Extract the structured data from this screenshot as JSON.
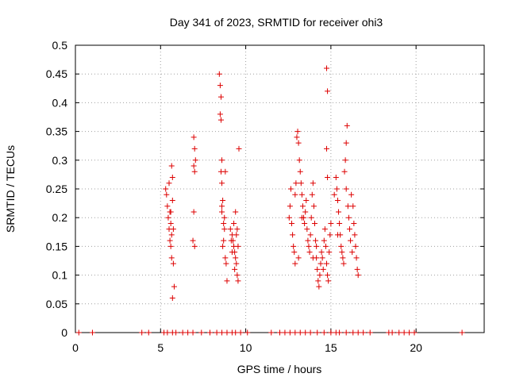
{
  "chart_data": {
    "type": "scatter",
    "title": "Day 341 of 2023, SRMTID for receiver ohi3",
    "xlabel": "GPS time / hours",
    "ylabel": "SRMTID / TECUs",
    "xlim": [
      0,
      24
    ],
    "ylim": [
      0,
      0.5
    ],
    "xticks": [
      0,
      5,
      10,
      15,
      20
    ],
    "xtick_labels": [
      "0",
      "5",
      "10",
      "15",
      "20"
    ],
    "yticks": [
      0,
      0.05,
      0.1,
      0.15,
      0.2,
      0.25,
      0.3,
      0.35,
      0.4,
      0.45,
      0.5
    ],
    "ytick_labels": [
      "0",
      "0.05",
      "0.1",
      "0.15",
      "0.2",
      "0.25",
      "0.3",
      "0.35",
      "0.4",
      "0.45",
      "0.5"
    ],
    "grid": true,
    "marker": "+",
    "color": "#dd0000",
    "series": [
      {
        "name": "SRMTID",
        "points": [
          [
            0.2,
            0
          ],
          [
            1.0,
            0
          ],
          [
            3.9,
            0
          ],
          [
            4.3,
            0
          ],
          [
            5.2,
            0
          ],
          [
            5.4,
            0
          ],
          [
            5.7,
            0
          ],
          [
            5.9,
            0
          ],
          [
            6.3,
            0
          ],
          [
            6.6,
            0
          ],
          [
            6.9,
            0
          ],
          [
            7.4,
            0
          ],
          [
            7.9,
            0
          ],
          [
            8.3,
            0
          ],
          [
            8.6,
            0
          ],
          [
            8.9,
            0
          ],
          [
            9.2,
            0
          ],
          [
            9.4,
            0
          ],
          [
            9.7,
            0
          ],
          [
            10.1,
            0
          ],
          [
            11.5,
            0
          ],
          [
            12.0,
            0
          ],
          [
            12.3,
            0
          ],
          [
            12.6,
            0
          ],
          [
            12.9,
            0
          ],
          [
            13.2,
            0
          ],
          [
            13.5,
            0
          ],
          [
            13.8,
            0
          ],
          [
            14.2,
            0
          ],
          [
            14.6,
            0
          ],
          [
            15.0,
            0
          ],
          [
            15.3,
            0
          ],
          [
            15.5,
            0
          ],
          [
            15.9,
            0
          ],
          [
            16.3,
            0
          ],
          [
            16.6,
            0
          ],
          [
            16.9,
            0
          ],
          [
            17.3,
            0
          ],
          [
            18.4,
            0
          ],
          [
            18.6,
            0
          ],
          [
            19.0,
            0
          ],
          [
            19.3,
            0
          ],
          [
            19.6,
            0
          ],
          [
            19.9,
            0
          ],
          [
            22.7,
            0
          ],
          [
            5.3,
            0.25
          ],
          [
            5.35,
            0.24
          ],
          [
            5.4,
            0.22
          ],
          [
            5.45,
            0.2
          ],
          [
            5.5,
            0.26
          ],
          [
            5.55,
            0.21
          ],
          [
            5.6,
            0.19
          ],
          [
            5.6,
            0.15
          ],
          [
            5.65,
            0.13
          ],
          [
            5.65,
            0.29
          ],
          [
            5.7,
            0.23
          ],
          [
            5.7,
            0.27
          ],
          [
            5.75,
            0.18
          ],
          [
            5.75,
            0.12
          ],
          [
            5.8,
            0.08
          ],
          [
            5.7,
            0.06
          ],
          [
            5.6,
            0.21
          ],
          [
            5.5,
            0.18
          ],
          [
            5.55,
            0.16
          ],
          [
            5.65,
            0.17
          ],
          [
            6.95,
            0.34
          ],
          [
            7.0,
            0.32
          ],
          [
            6.95,
            0.29
          ],
          [
            7.0,
            0.28
          ],
          [
            7.05,
            0.3
          ],
          [
            6.95,
            0.21
          ],
          [
            6.9,
            0.16
          ],
          [
            7.0,
            0.15
          ],
          [
            8.45,
            0.45
          ],
          [
            8.5,
            0.43
          ],
          [
            8.55,
            0.41
          ],
          [
            8.5,
            0.38
          ],
          [
            8.55,
            0.37
          ],
          [
            8.6,
            0.3
          ],
          [
            8.55,
            0.28
          ],
          [
            8.6,
            0.26
          ],
          [
            8.65,
            0.23
          ],
          [
            8.6,
            0.21
          ],
          [
            8.7,
            0.19
          ],
          [
            8.75,
            0.18
          ],
          [
            8.7,
            0.16
          ],
          [
            8.65,
            0.15
          ],
          [
            8.8,
            0.13
          ],
          [
            8.85,
            0.12
          ],
          [
            8.75,
            0.2
          ],
          [
            8.6,
            0.22
          ],
          [
            8.9,
            0.09
          ],
          [
            8.8,
            0.28
          ],
          [
            9.1,
            0.18
          ],
          [
            9.2,
            0.17
          ],
          [
            9.25,
            0.16
          ],
          [
            9.3,
            0.15
          ],
          [
            9.35,
            0.14
          ],
          [
            9.4,
            0.13
          ],
          [
            9.45,
            0.12
          ],
          [
            9.5,
            0.1
          ],
          [
            9.55,
            0.09
          ],
          [
            9.4,
            0.21
          ],
          [
            9.5,
            0.18
          ],
          [
            9.6,
            0.32
          ],
          [
            9.3,
            0.19
          ],
          [
            9.15,
            0.16
          ],
          [
            9.2,
            0.14
          ],
          [
            9.35,
            0.11
          ],
          [
            9.45,
            0.17
          ],
          [
            9.55,
            0.15
          ],
          [
            12.55,
            0.2
          ],
          [
            12.6,
            0.22
          ],
          [
            12.65,
            0.25
          ],
          [
            12.7,
            0.19
          ],
          [
            12.75,
            0.17
          ],
          [
            12.8,
            0.15
          ],
          [
            12.85,
            0.14
          ],
          [
            12.9,
            0.24
          ],
          [
            12.95,
            0.26
          ],
          [
            13.0,
            0.34
          ],
          [
            13.05,
            0.35
          ],
          [
            13.1,
            0.33
          ],
          [
            13.15,
            0.3
          ],
          [
            13.2,
            0.28
          ],
          [
            13.25,
            0.26
          ],
          [
            13.3,
            0.24
          ],
          [
            13.35,
            0.22
          ],
          [
            13.4,
            0.2
          ],
          [
            13.45,
            0.19
          ],
          [
            13.5,
            0.21
          ],
          [
            13.55,
            0.23
          ],
          [
            13.6,
            0.18
          ],
          [
            13.65,
            0.16
          ],
          [
            13.7,
            0.15
          ],
          [
            13.75,
            0.14
          ],
          [
            13.8,
            0.17
          ],
          [
            13.85,
            0.2
          ],
          [
            13.9,
            0.24
          ],
          [
            13.95,
            0.26
          ],
          [
            14.0,
            0.22
          ],
          [
            14.05,
            0.19
          ],
          [
            14.1,
            0.16
          ],
          [
            14.15,
            0.13
          ],
          [
            14.2,
            0.11
          ],
          [
            14.25,
            0.09
          ],
          [
            14.3,
            0.08
          ],
          [
            14.35,
            0.1
          ],
          [
            14.4,
            0.12
          ],
          [
            14.45,
            0.14
          ],
          [
            14.5,
            0.13
          ],
          [
            14.55,
            0.11
          ],
          [
            14.6,
            0.16
          ],
          [
            14.65,
            0.18
          ],
          [
            14.7,
            0.15
          ],
          [
            14.75,
            0.12
          ],
          [
            14.8,
            0.1
          ],
          [
            14.85,
            0.09
          ],
          [
            14.9,
            0.14
          ],
          [
            14.95,
            0.17
          ],
          [
            15.0,
            0.19
          ],
          [
            14.75,
            0.32
          ],
          [
            14.8,
            0.42
          ],
          [
            14.75,
            0.46
          ],
          [
            14.8,
            0.27
          ],
          [
            13.1,
            0.13
          ],
          [
            12.9,
            0.12
          ],
          [
            13.3,
            0.2
          ],
          [
            13.95,
            0.13
          ],
          [
            14.15,
            0.15
          ],
          [
            15.3,
            0.27
          ],
          [
            15.35,
            0.25
          ],
          [
            15.4,
            0.23
          ],
          [
            15.45,
            0.21
          ],
          [
            15.5,
            0.19
          ],
          [
            15.55,
            0.17
          ],
          [
            15.6,
            0.15
          ],
          [
            15.65,
            0.14
          ],
          [
            15.7,
            0.13
          ],
          [
            15.75,
            0.12
          ],
          [
            15.8,
            0.28
          ],
          [
            15.85,
            0.3
          ],
          [
            15.9,
            0.33
          ],
          [
            15.95,
            0.36
          ],
          [
            15.9,
            0.25
          ],
          [
            16.0,
            0.22
          ],
          [
            16.05,
            0.2
          ],
          [
            16.1,
            0.18
          ],
          [
            16.15,
            0.16
          ],
          [
            16.2,
            0.24
          ],
          [
            16.3,
            0.22
          ],
          [
            16.35,
            0.19
          ],
          [
            16.4,
            0.17
          ],
          [
            16.45,
            0.15
          ],
          [
            16.5,
            0.13
          ],
          [
            16.55,
            0.11
          ],
          [
            16.6,
            0.1
          ],
          [
            15.2,
            0.24
          ],
          [
            15.4,
            0.17
          ],
          [
            16.25,
            0.14
          ]
        ]
      }
    ]
  }
}
